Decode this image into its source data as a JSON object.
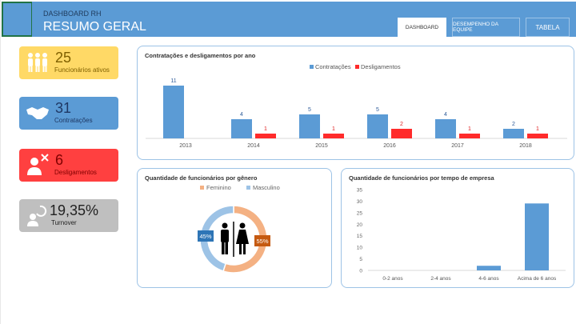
{
  "header": {
    "subtitle": "DASHBOARD RH",
    "title": "RESUMO GERAL",
    "tabs": [
      {
        "label": "DASHBOARD",
        "active": true
      },
      {
        "label": "DESEMPENHO DA EQUIPE"
      },
      {
        "label": "TABELA"
      }
    ]
  },
  "cards": [
    {
      "value": "25",
      "label": "Funcionários ativos",
      "icon": "people-icon",
      "color": "#ffd966"
    },
    {
      "value": "31",
      "label": "Contratações",
      "icon": "handshake-icon",
      "color": "#5b9bd5"
    },
    {
      "value": "6",
      "label": "Desligamentos",
      "icon": "fired-person-icon",
      "color": "#ff4040"
    },
    {
      "value": "19,35%",
      "label": "Turnover",
      "icon": "turnover-icon",
      "color": "#bfbfbf"
    }
  ],
  "chart_data": [
    {
      "type": "bar",
      "title": "Contratações e desligamentos por ano",
      "categories": [
        "2013",
        "2014",
        "2015",
        "2016",
        "2017",
        "2018"
      ],
      "series": [
        {
          "name": "Contratações",
          "color": "#5b9bd5",
          "values": [
            11,
            4,
            5,
            5,
            4,
            2
          ]
        },
        {
          "name": "Desligamentos",
          "color": "#ff2b2b",
          "values": [
            0,
            1,
            1,
            2,
            1,
            1
          ]
        }
      ],
      "legend": "top"
    },
    {
      "type": "pie",
      "title": "Quantidade de funcionários por gênero",
      "categories": [
        "Feminino",
        "Masculino"
      ],
      "values": [
        55,
        45
      ],
      "labels": [
        "55%",
        "45%"
      ],
      "colors": [
        "#f4b183",
        "#9dc3e6"
      ],
      "legend": "top"
    },
    {
      "type": "bar",
      "title": "Quantidade de funcionários por tempo de empresa",
      "categories": [
        "0-2 anos",
        "2-4 anos",
        "4-6 anos",
        "Acima de 6 anos"
      ],
      "values": [
        0,
        0,
        2,
        29
      ],
      "ylim": [
        0,
        35
      ],
      "yticks": [
        "0",
        "5",
        "10",
        "15",
        "20",
        "25",
        "30",
        "35"
      ]
    }
  ]
}
